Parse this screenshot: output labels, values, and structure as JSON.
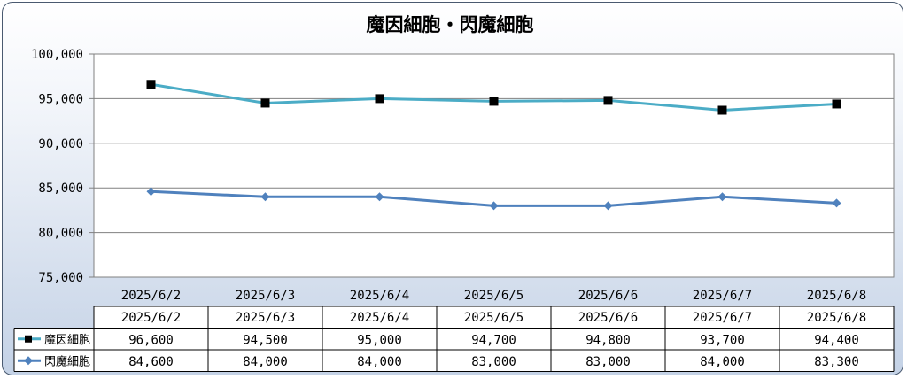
{
  "chart_data": {
    "type": "line",
    "title": "魔因細胞・閃魔細胞",
    "categories": [
      "2025/6/2",
      "2025/6/3",
      "2025/6/4",
      "2025/6/5",
      "2025/6/6",
      "2025/6/7",
      "2025/6/8"
    ],
    "series": [
      {
        "name": "魔因細胞",
        "values": [
          96600,
          94500,
          95000,
          94700,
          94800,
          93700,
          94400
        ],
        "display": [
          "96,600",
          "94,500",
          "95,000",
          "94,700",
          "94,800",
          "93,700",
          "94,400"
        ],
        "color": "#4bacc6",
        "marker": "square",
        "marker_color": "#000000"
      },
      {
        "name": "閃魔細胞",
        "values": [
          84600,
          84000,
          84000,
          83000,
          83000,
          84000,
          83300
        ],
        "display": [
          "84,600",
          "84,000",
          "84,000",
          "83,000",
          "83,000",
          "84,000",
          "83,300"
        ],
        "color": "#4f81bd",
        "marker": "diamond",
        "marker_color": "#4f81bd"
      }
    ],
    "ylim": [
      75000,
      100000
    ],
    "yticks": [
      100000,
      95000,
      90000,
      85000,
      80000,
      75000
    ],
    "ytick_labels": [
      "100,000",
      "95,000",
      "90,000",
      "85,000",
      "80,000",
      "75,000"
    ],
    "grid": true,
    "legend": "data-table"
  }
}
